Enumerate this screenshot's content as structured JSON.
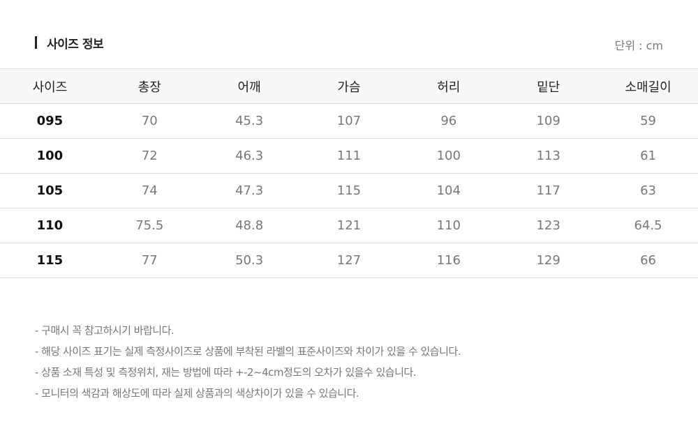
{
  "title": "사이즈 정보",
  "unit": "단위 : cm",
  "table": {
    "headers": [
      "사이즈",
      "총장",
      "어깨",
      "가슴",
      "허리",
      "밑단",
      "소매길이"
    ],
    "rows": [
      [
        "095",
        "70",
        "45.3",
        "107",
        "96",
        "109",
        "59"
      ],
      [
        "100",
        "72",
        "46.3",
        "111",
        "100",
        "113",
        "61"
      ],
      [
        "105",
        "74",
        "47.3",
        "115",
        "104",
        "117",
        "63"
      ],
      [
        "110",
        "75.5",
        "48.8",
        "121",
        "110",
        "123",
        "64.5"
      ],
      [
        "115",
        "77",
        "50.3",
        "127",
        "116",
        "129",
        "66"
      ]
    ]
  },
  "notes": [
    "- 구매시 꼭 참고하시기 바랍니다.",
    "- 해당 사이즈 표기는 실제 측정사이즈로 상품에 부착된 라벨의 표준사이즈와 차이가 있을 수 있습니다.",
    "- 상품 소재 특성 및 측정위치, 재는 방법에 따라 +-2~4cm정도의 오차가 있을수 있습니다.",
    "- 모니터의 색감과 해상도에 따라 실제 상품과의 색상차이가 있을 수 있습니다."
  ]
}
